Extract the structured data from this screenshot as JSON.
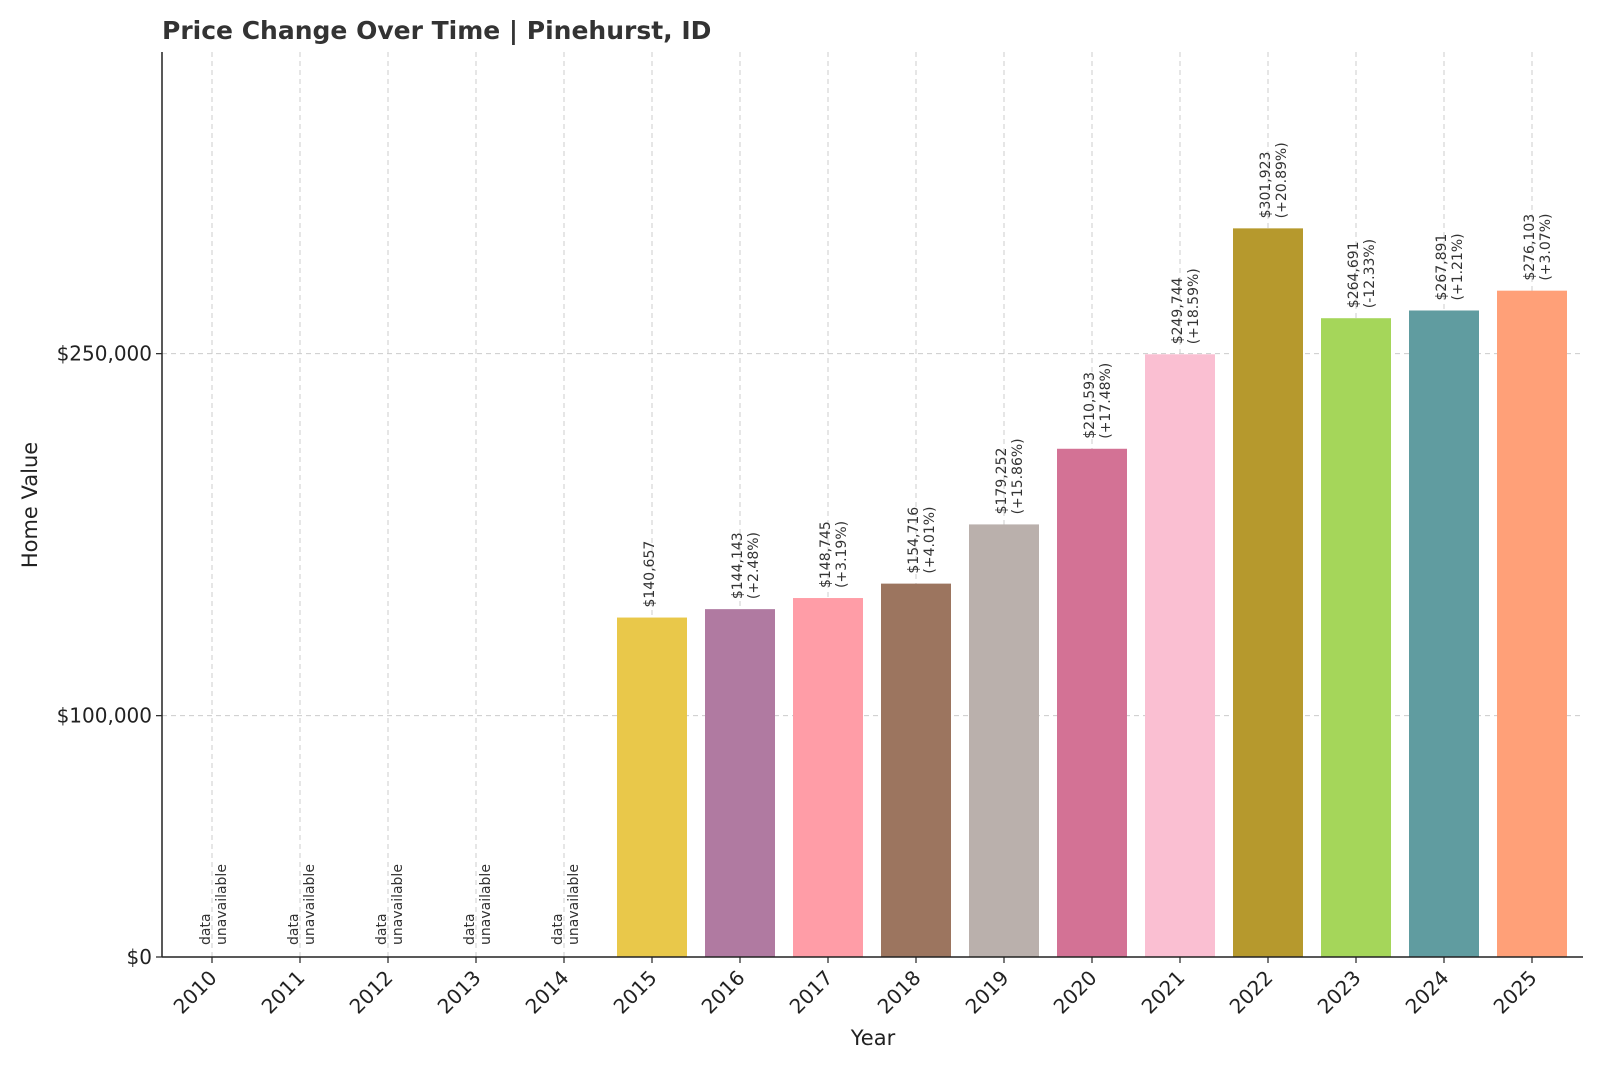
{
  "chart_data": {
    "type": "bar",
    "title": "Price Change Over Time | Pinehurst, ID",
    "xlabel": "Year",
    "ylabel": "Home Value",
    "ylim": [
      0,
      375000
    ],
    "y_ticks": [
      {
        "value": 0,
        "label": "$0"
      },
      {
        "value": 100000,
        "label": "$100,000"
      },
      {
        "value": 250000,
        "label": "$250,000"
      }
    ],
    "grid": true,
    "categories": [
      "2010",
      "2011",
      "2012",
      "2013",
      "2014",
      "2015",
      "2016",
      "2017",
      "2018",
      "2019",
      "2020",
      "2021",
      "2022",
      "2023",
      "2024",
      "2025"
    ],
    "values": [
      null,
      null,
      null,
      null,
      null,
      140657,
      144143,
      148745,
      154716,
      179252,
      210593,
      249744,
      301923,
      264691,
      267891,
      276103
    ],
    "value_labels": [
      "",
      "",
      "",
      "",
      "",
      "$140,657",
      "$144,143",
      "$148,745",
      "$154,716",
      "$179,252",
      "$210,593",
      "$249,744",
      "$301,923",
      "$264,691",
      "$267,891",
      "$276,103"
    ],
    "change_labels": [
      "",
      "",
      "",
      "",
      "",
      "",
      "(+2.48%)",
      "(+3.19%)",
      "(+4.01%)",
      "(+15.86%)",
      "(+17.48%)",
      "(+18.59%)",
      "(+20.89%)",
      "(-12.33%)",
      "(+1.21%)",
      "(+3.07%)"
    ],
    "unavailable_label": [
      "data",
      "unavailable"
    ],
    "colors": [
      "",
      "",
      "",
      "",
      "",
      "#e9c84a",
      "#b07aa1",
      "#ff9da7",
      "#9c755f",
      "#bab0ac",
      "#d37295",
      "#fabfd2",
      "#b6992d",
      "#a5d65a",
      "#609ca0",
      "#ffa078"
    ]
  }
}
